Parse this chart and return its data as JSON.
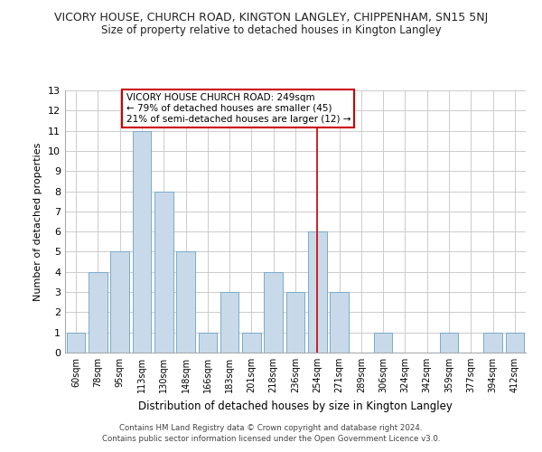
{
  "title": "VICORY HOUSE, CHURCH ROAD, KINGTON LANGLEY, CHIPPENHAM, SN15 5NJ",
  "subtitle": "Size of property relative to detached houses in Kington Langley",
  "xlabel": "Distribution of detached houses by size in Kington Langley",
  "ylabel": "Number of detached properties",
  "categories": [
    "60sqm",
    "78sqm",
    "95sqm",
    "113sqm",
    "130sqm",
    "148sqm",
    "166sqm",
    "183sqm",
    "201sqm",
    "218sqm",
    "236sqm",
    "254sqm",
    "271sqm",
    "289sqm",
    "306sqm",
    "324sqm",
    "342sqm",
    "359sqm",
    "377sqm",
    "394sqm",
    "412sqm"
  ],
  "values": [
    1,
    4,
    5,
    11,
    8,
    5,
    1,
    3,
    1,
    4,
    3,
    6,
    3,
    0,
    1,
    0,
    0,
    1,
    0,
    1,
    1
  ],
  "bar_color": "#c8daea",
  "bar_edge_color": "#7aaac8",
  "vline_x_index": 11,
  "vline_color": "#cc0000",
  "annotation_title": "VICORY HOUSE CHURCH ROAD: 249sqm",
  "annotation_line1": "← 79% of detached houses are smaller (45)",
  "annotation_line2": "21% of semi-detached houses are larger (12) →",
  "annotation_box_color": "#ffffff",
  "annotation_box_edge": "#cc0000",
  "ylim": [
    0,
    13
  ],
  "yticks": [
    0,
    1,
    2,
    3,
    4,
    5,
    6,
    7,
    8,
    9,
    10,
    11,
    12,
    13
  ],
  "grid_color": "#cccccc",
  "footer1": "Contains HM Land Registry data © Crown copyright and database right 2024.",
  "footer2": "Contains public sector information licensed under the Open Government Licence v3.0."
}
